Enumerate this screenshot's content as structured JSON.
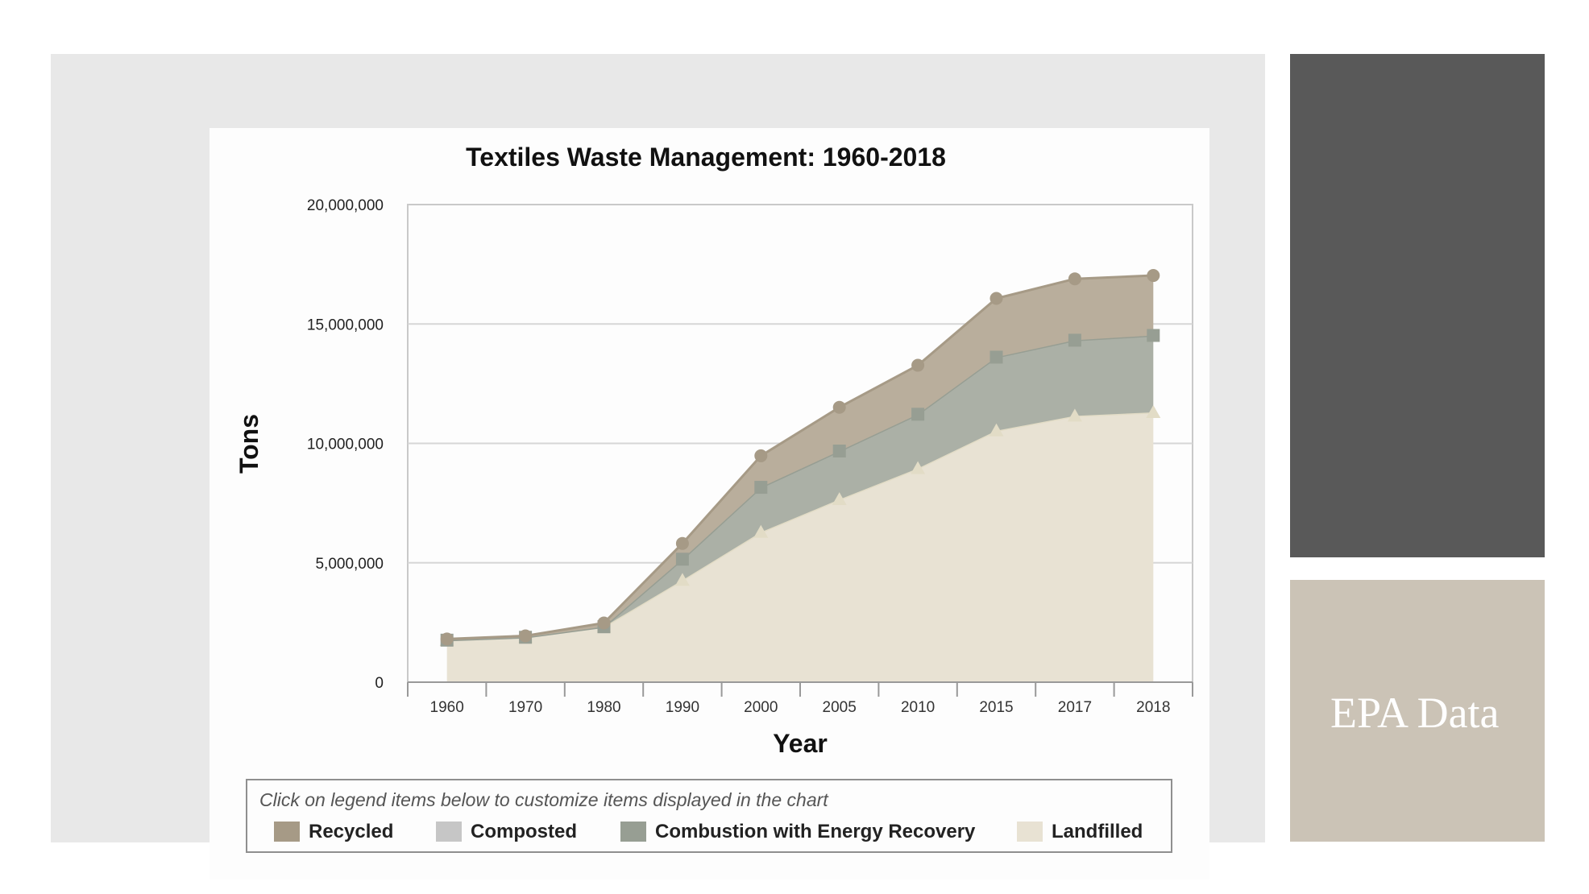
{
  "side_panel": {
    "caption": "EPA Data"
  },
  "chart_data": {
    "type": "area",
    "stacked": true,
    "title": "Textiles Waste Management: 1960-2018",
    "xlabel": "Year",
    "ylabel": "Tons",
    "categories": [
      "1960",
      "1970",
      "1980",
      "1990",
      "2000",
      "2005",
      "2010",
      "2015",
      "2017",
      "2018"
    ],
    "ylim": [
      0,
      20000000
    ],
    "yticks": [
      0,
      5000000,
      10000000,
      15000000,
      20000000
    ],
    "ytick_labels": [
      "0",
      "5,000,000",
      "10,000,000",
      "15,000,000",
      "20,000,000"
    ],
    "grid": true,
    "series": [
      {
        "name": "Landfilled",
        "color": "#e8e2d3",
        "line_color": "#e2dcc6",
        "marker": "triangle",
        "values": [
          1760000,
          1880000,
          2320000,
          4270000,
          6280000,
          7650000,
          8950000,
          10530000,
          11150000,
          11300000
        ]
      },
      {
        "name": "Combustion with Energy Recovery",
        "color": "#abb0a6",
        "line_color": "#979e93",
        "marker": "square",
        "values": [
          0,
          0,
          0,
          880000,
          1880000,
          2030000,
          2270000,
          3080000,
          3170000,
          3220000
        ]
      },
      {
        "name": "Composted",
        "color": "#c6c6c6",
        "line_color": "#bdbdbd",
        "marker": "none",
        "values": [
          0,
          0,
          0,
          0,
          0,
          0,
          0,
          0,
          0,
          0
        ]
      },
      {
        "name": "Recycled",
        "color": "#b9ae9c",
        "line_color": "#a69a86",
        "marker": "circle",
        "values": [
          50000,
          60000,
          160000,
          660000,
          1320000,
          1830000,
          2050000,
          2460000,
          2570000,
          2510000
        ]
      }
    ],
    "legend": {
      "note": "Click on legend items below to customize items displayed in the chart",
      "position": "bottom",
      "items": [
        {
          "label": "Recycled",
          "color": "#a69a86"
        },
        {
          "label": "Composted",
          "color": "#c6c6c6"
        },
        {
          "label": "Combustion with Energy Recovery",
          "color": "#979e93"
        },
        {
          "label": "Landfilled",
          "color": "#e8e2d3"
        }
      ]
    }
  }
}
